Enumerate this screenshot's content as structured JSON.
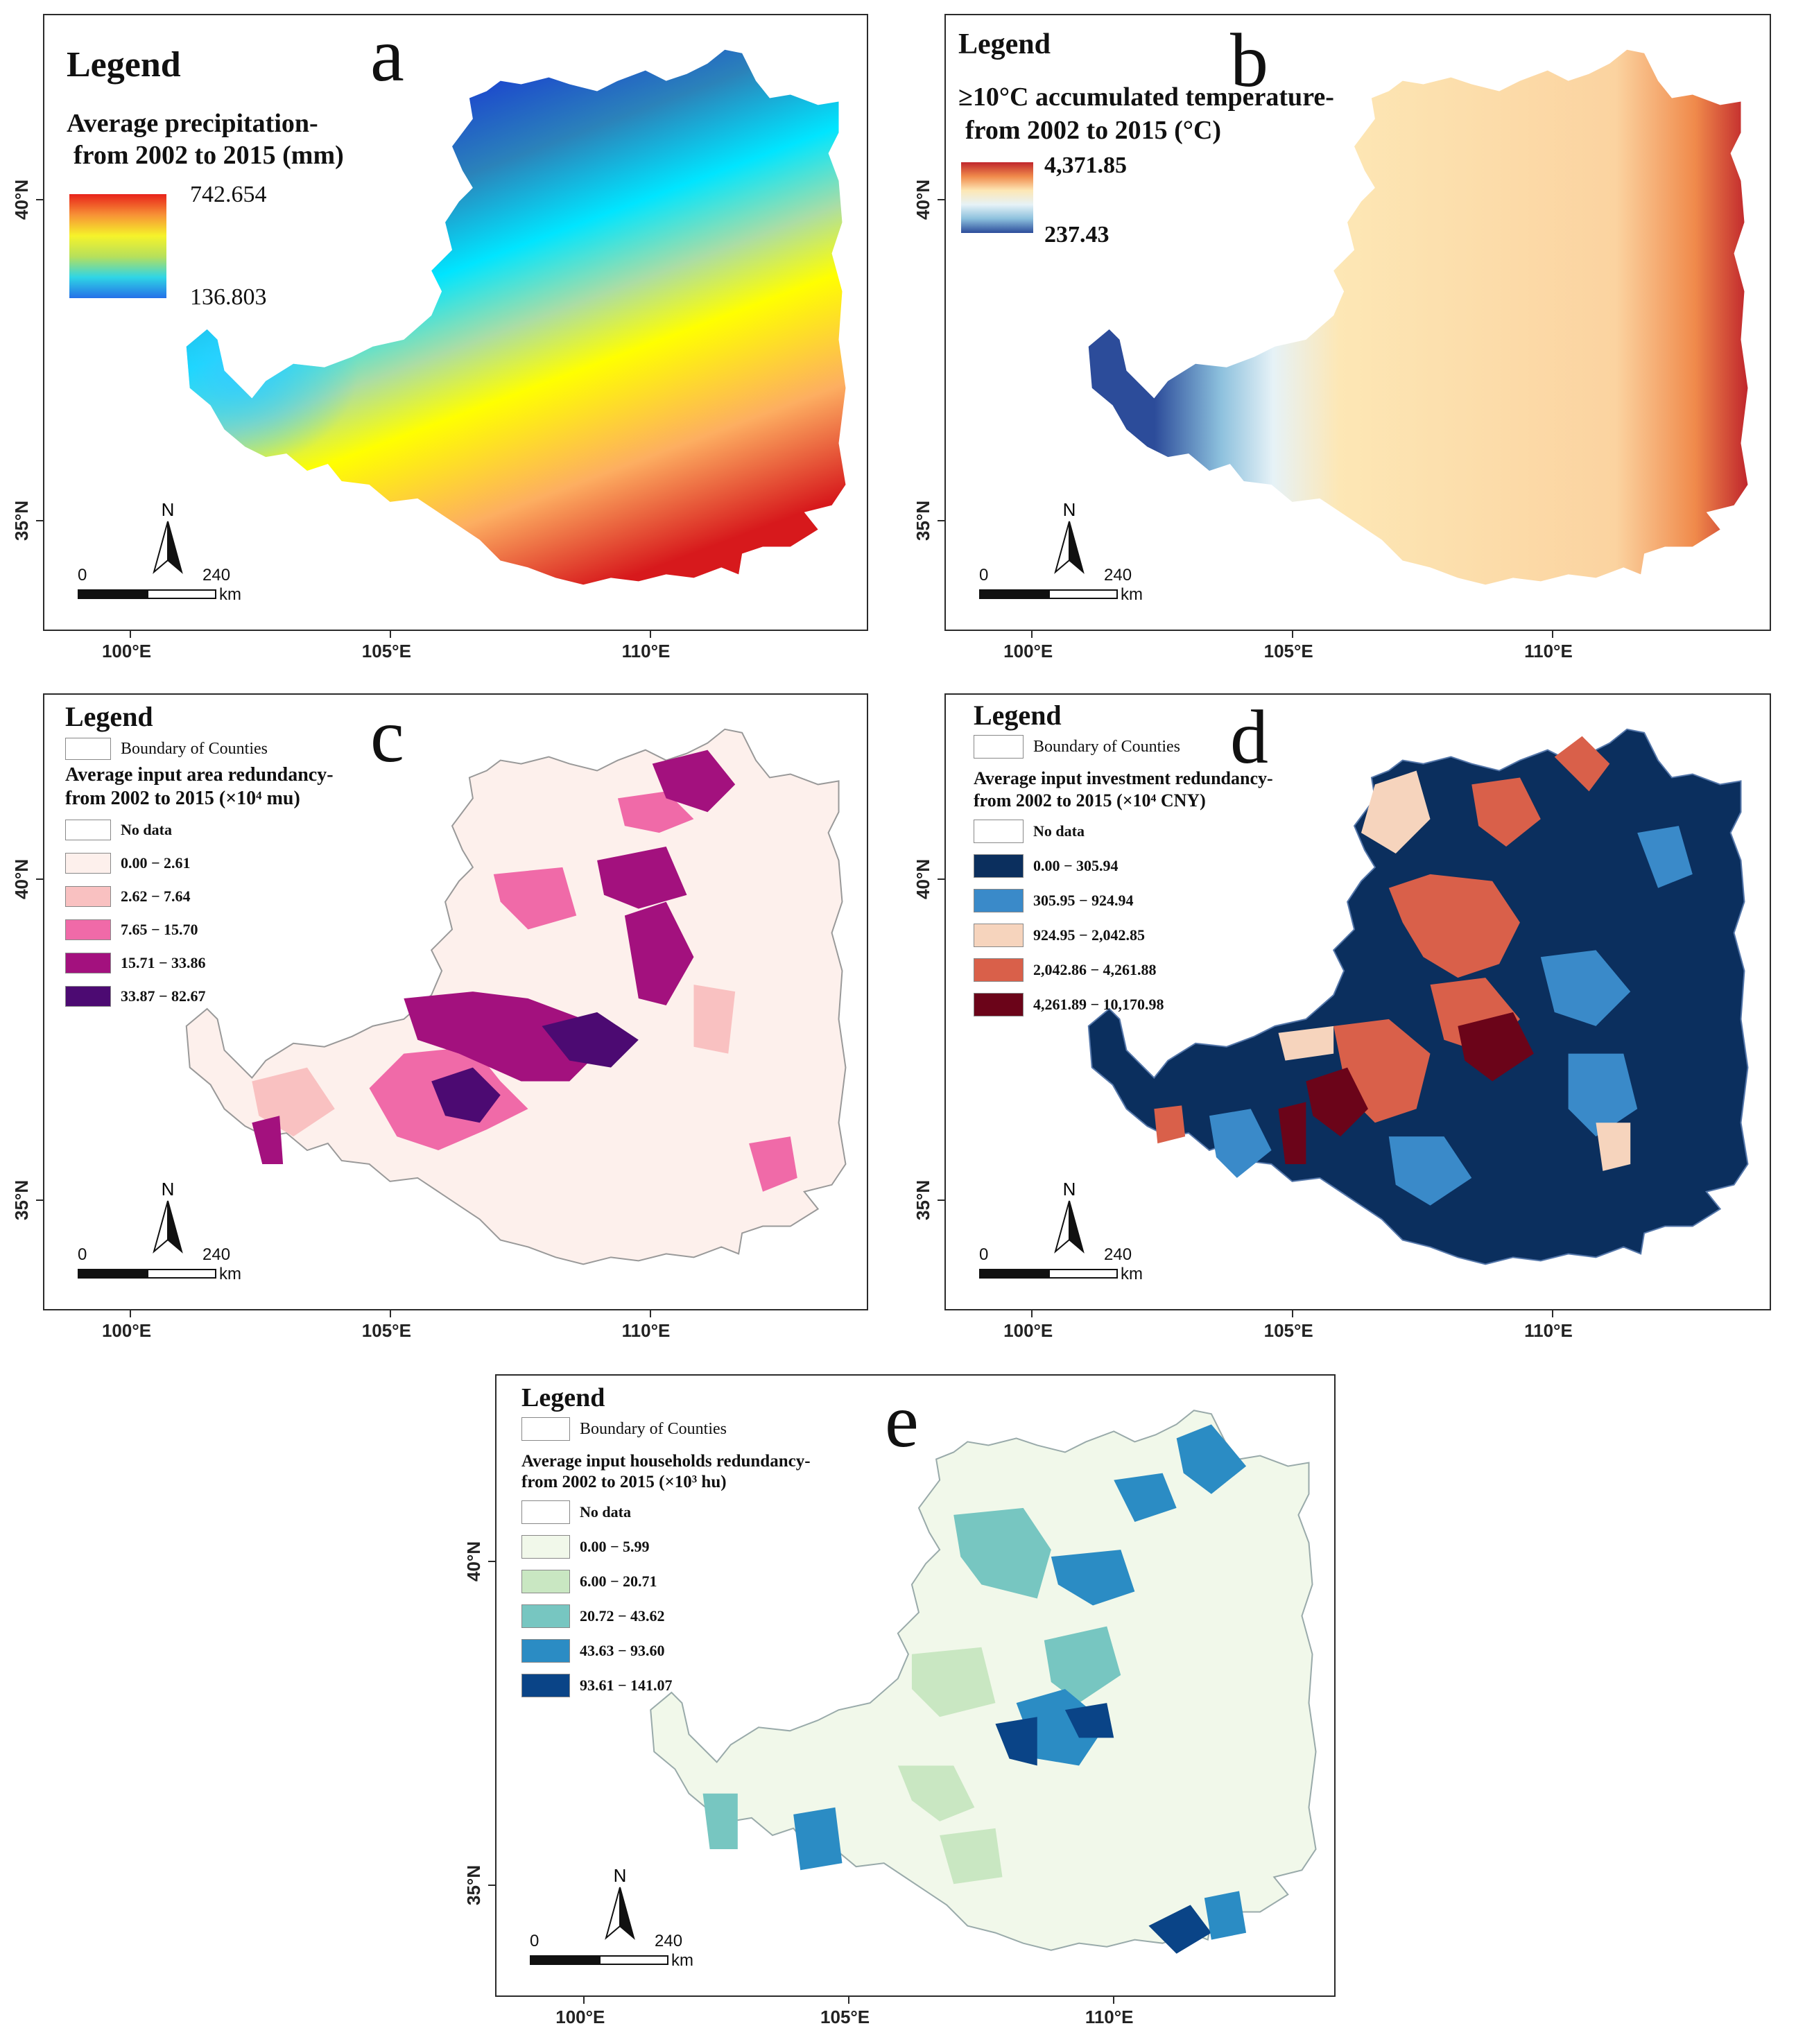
{
  "axes": {
    "lat_labels": [
      "40°N",
      "35°N"
    ],
    "lon_labels": [
      "100°E",
      "105°E",
      "110°E"
    ]
  },
  "scalebar": {
    "left_label": "0",
    "right_label": "240",
    "unit": "km",
    "north": "N"
  },
  "panels": {
    "a": {
      "letter": "a",
      "legend_title": "Legend",
      "subtitle_line1": "Average precipitation-",
      "subtitle_line2": "from 2002  to 2015 (mm)",
      "max": "742.654",
      "min": "136.803",
      "ramp_colors": [
        "#d7191c",
        "#fdae61",
        "#ffff00",
        "#abdda4",
        "#00e5ff",
        "#2b83ba",
        "#1a3fd0"
      ]
    },
    "b": {
      "letter": "b",
      "legend_title": "Legend",
      "subtitle_line1": "≥10°C accumulated temperature-",
      "subtitle_line2": "from 2002  to 2015 (°C)",
      "max": "4,371.85",
      "min": "237.43",
      "ramp_colors": [
        "#c0262c",
        "#f08a4b",
        "#fde7b5",
        "#e6f2f7",
        "#8cc0dd",
        "#2c4c9a"
      ]
    },
    "c": {
      "letter": "c",
      "legend_title": "Legend",
      "boundary_label": "Boundary of Counties",
      "subtitle_line1": "Average input area redundancy-",
      "subtitle_line2": "from 2002 to 2015 (×10⁴ mu)",
      "classes": [
        {
          "label": "No data",
          "color": "#ffffff"
        },
        {
          "label": "0.00 − 2.61",
          "color": "#fdf0ec"
        },
        {
          "label": "2.62 − 7.64",
          "color": "#f9c1c1"
        },
        {
          "label": "7.65 − 15.70",
          "color": "#f06aa8"
        },
        {
          "label": "15.71 − 33.86",
          "color": "#a3117e"
        },
        {
          "label": "33.87 − 82.67",
          "color": "#4c0a72"
        }
      ]
    },
    "d": {
      "letter": "d",
      "legend_title": "Legend",
      "boundary_label": "Boundary of Counties",
      "subtitle_line1": "Average input investment redundancy-",
      "subtitle_line2": "from 2002 to 2015 (×10⁴ CNY)",
      "classes": [
        {
          "label": "No data",
          "color": "#ffffff"
        },
        {
          "label": "0.00 − 305.94",
          "color": "#0b2f5e"
        },
        {
          "label": "305.95 − 924.94",
          "color": "#3a8ac9"
        },
        {
          "label": "924.95 − 2,042.85",
          "color": "#f6d4bd"
        },
        {
          "label": "2,042.86 − 4,261.88",
          "color": "#d9604a"
        },
        {
          "label": "4,261.89 − 10,170.98",
          "color": "#6b0419"
        }
      ]
    },
    "e": {
      "letter": "e",
      "legend_title": "Legend",
      "boundary_label": "Boundary of Counties",
      "subtitle_line1": "Average input households redundancy-",
      "subtitle_line2": "from 2002 to 2015 (×10³ hu)",
      "classes": [
        {
          "label": "No data",
          "color": "#ffffff"
        },
        {
          "label": "0.00 − 5.99",
          "color": "#f1f8ea"
        },
        {
          "label": "6.00 − 20.71",
          "color": "#c9e7c2"
        },
        {
          "label": "20.72 − 43.62",
          "color": "#77c6c1"
        },
        {
          "label": "43.63 − 93.60",
          "color": "#2b8cc4"
        },
        {
          "label": "93.61 − 141.07",
          "color": "#0a4487"
        }
      ]
    }
  }
}
